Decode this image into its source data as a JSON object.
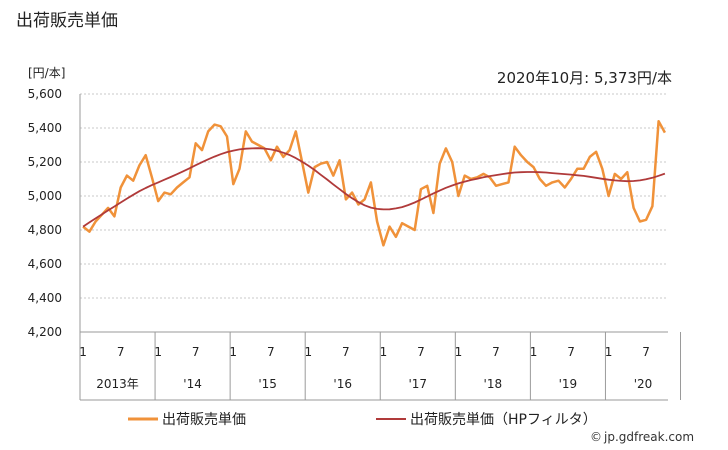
{
  "chart_data": {
    "type": "line",
    "title": "出荷販売単価",
    "unit_label": "[円/本]",
    "annotation": "2020年10月: 5,373円/本",
    "ylim": [
      4200,
      5600
    ],
    "yticks": [
      4200,
      4400,
      4600,
      4800,
      5000,
      5200,
      5400,
      5600
    ],
    "ytick_labels": [
      "4,200",
      "4,400",
      "4,600",
      "4,800",
      "5,000",
      "5,200",
      "5,400",
      "5,600"
    ],
    "grid": true,
    "x_month_labels": [
      "1",
      "7",
      "1",
      "7",
      "1",
      "7",
      "1",
      "7",
      "1",
      "7",
      "1",
      "7",
      "1",
      "7",
      "1",
      "7"
    ],
    "x_year_labels": [
      "2013年",
      "'14",
      "'15",
      "'16",
      "'17",
      "'18",
      "'19",
      "'20"
    ],
    "start": "2013-01",
    "series": [
      {
        "name": "出荷販売単価",
        "color": "#f0923a",
        "values": [
          4820,
          4790,
          4850,
          4890,
          4930,
          4880,
          5050,
          5120,
          5090,
          5180,
          5240,
          5110,
          4970,
          5020,
          5010,
          5050,
          5080,
          5110,
          5310,
          5270,
          5380,
          5420,
          5410,
          5350,
          5070,
          5160,
          5380,
          5320,
          5300,
          5280,
          5210,
          5290,
          5230,
          5270,
          5380,
          5200,
          5020,
          5170,
          5190,
          5200,
          5120,
          5210,
          4980,
          5020,
          4950,
          4980,
          5080,
          4850,
          4710,
          4820,
          4760,
          4840,
          4820,
          4800,
          5040,
          5060,
          4900,
          5190,
          5280,
          5200,
          5000,
          5120,
          5100,
          5110,
          5130,
          5110,
          5060,
          5070,
          5080,
          5290,
          5240,
          5200,
          5170,
          5100,
          5060,
          5080,
          5090,
          5050,
          5100,
          5160,
          5160,
          5230,
          5260,
          5160,
          5000,
          5130,
          5100,
          5140,
          4930,
          4850,
          4860,
          4940,
          5440,
          5373
        ]
      },
      {
        "name": "出荷販売単価（HPフィルタ）",
        "color": "#b03a3a",
        "values": [
          4820,
          4845,
          4868,
          4892,
          4915,
          4938,
          4962,
          4985,
          5007,
          5028,
          5047,
          5064,
          5080,
          5096,
          5112,
          5128,
          5145,
          5163,
          5181,
          5199,
          5216,
          5232,
          5246,
          5258,
          5267,
          5274,
          5278,
          5280,
          5281,
          5279,
          5274,
          5266,
          5255,
          5241,
          5223,
          5202,
          5179,
          5153,
          5125,
          5097,
          5068,
          5040,
          5012,
          4987,
          4964,
          4945,
          4932,
          4924,
          4921,
          4922,
          4927,
          4935,
          4947,
          4962,
          4979,
          4997,
          5015,
          5032,
          5048,
          5062,
          5074,
          5085,
          5094,
          5102,
          5110,
          5117,
          5123,
          5129,
          5134,
          5138,
          5140,
          5141,
          5141,
          5140,
          5138,
          5135,
          5132,
          5129,
          5126,
          5122,
          5118,
          5113,
          5107,
          5101,
          5096,
          5092,
          5089,
          5087,
          5088,
          5092,
          5098,
          5107,
          5119,
          5132
        ]
      }
    ]
  },
  "legend": {
    "items": [
      {
        "label": "出荷販売単価",
        "color": "#f0923a"
      },
      {
        "label": "出荷販売単価（HPフィルタ）",
        "color": "#b03a3a"
      }
    ]
  },
  "credit": "jp.gdfreak.com"
}
